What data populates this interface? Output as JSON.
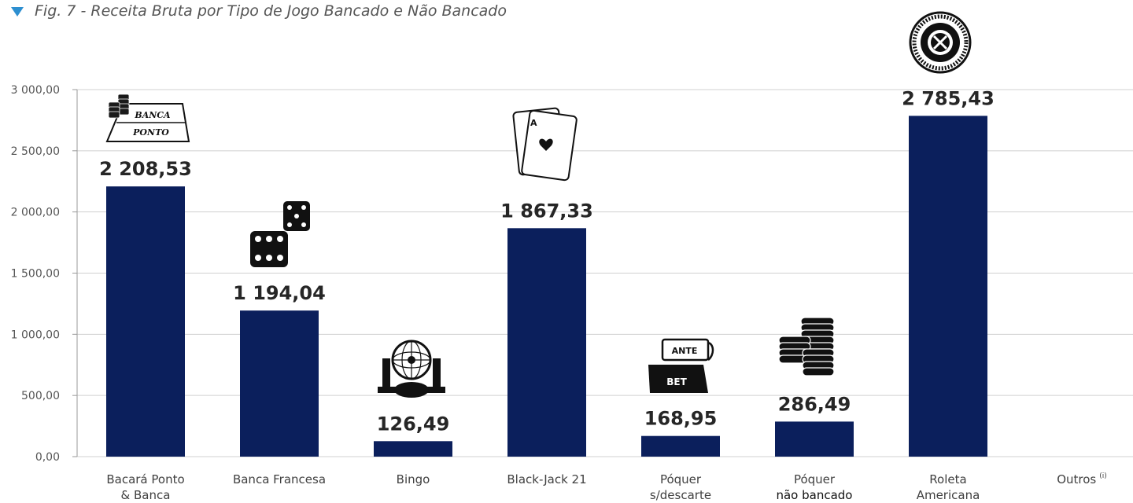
{
  "figure": {
    "title": "Fig. 7 - Receita Bruta por Tipo de Jogo Bancado e Não Bancado"
  },
  "colors": {
    "bar": "#0b1f5c",
    "title_marker": "#2d8fd0",
    "grid": "#d0d0d0"
  },
  "icons": {
    "banca_ponto": {
      "name": "baccarat-banca-ponto-icon",
      "text_top": "BANCA",
      "text_bottom": "PONTO"
    },
    "dice": {
      "name": "dice-icon"
    },
    "bingo": {
      "name": "bingo-cage-icon"
    },
    "cards": {
      "name": "playing-cards-icon"
    },
    "ante_bet": {
      "name": "ante-bet-icon",
      "text_top": "ANTE",
      "text_bottom": "BET"
    },
    "chips": {
      "name": "poker-chips-icon"
    },
    "roulette": {
      "name": "roulette-wheel-icon"
    }
  },
  "chart_data": {
    "type": "bar",
    "title": "Fig. 7 - Receita Bruta por Tipo de Jogo Bancado e Não Bancado",
    "xlabel": "",
    "ylabel": "",
    "ylim": [
      0,
      3000
    ],
    "yticks": [
      "0,00",
      "500,00",
      "1 000,00",
      "1 500,00",
      "2 000,00",
      "2 500,00",
      "3 000,00"
    ],
    "grid": true,
    "legend": "none",
    "categories": [
      [
        "Bacará Ponto",
        "& Banca"
      ],
      [
        "Banca Francesa"
      ],
      [
        "Bingo"
      ],
      [
        "Black-Jack 21"
      ],
      [
        "Póquer",
        "s/descarte"
      ],
      [
        "Póquer",
        "não bancado"
      ],
      [
        "Roleta",
        "Americana"
      ],
      [
        "Outros"
      ]
    ],
    "category_superscripts": [
      "",
      "",
      "",
      "",
      "",
      "",
      "",
      "(i)"
    ],
    "values": [
      2208.53,
      1194.04,
      126.49,
      1867.33,
      168.95,
      286.49,
      2785.43,
      null
    ],
    "value_labels": [
      "2 208,53",
      "1 194,04",
      "126,49",
      "1 867,33",
      "168,95",
      "286,49",
      "2 785,43",
      ""
    ]
  }
}
